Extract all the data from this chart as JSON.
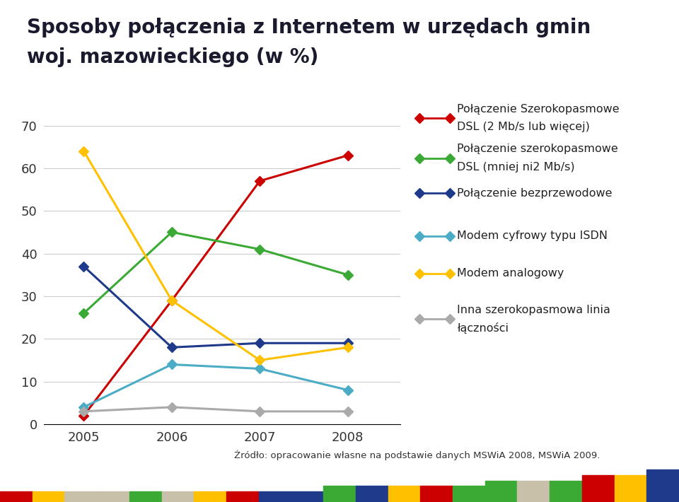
{
  "title_line1": "Sposoby połączenia z Internetem w urzędach gmin",
  "title_line2": "woj. mazowieckiego (w %)",
  "years": [
    2005,
    2006,
    2007,
    2008
  ],
  "series": [
    {
      "label_line1": "Połączenie Szerokopasmowe",
      "label_line2": "DSL (2 Mb/s lub więcej)",
      "values": [
        2,
        29,
        57,
        63
      ],
      "color": "#cc0000",
      "marker": "D"
    },
    {
      "label_line1": "Połączenie szerokopasmowe",
      "label_line2": "DSL (mniej ni2 Mb/s)",
      "values": [
        26,
        45,
        41,
        35
      ],
      "color": "#3aaa35",
      "marker": "D"
    },
    {
      "label_line1": "Połączenie bezprzewodowe",
      "label_line2": "",
      "values": [
        37,
        18,
        19,
        19
      ],
      "color": "#1f3a8a",
      "marker": "D"
    },
    {
      "label_line1": "Modem cyfrowy typu ISDN",
      "label_line2": "",
      "values": [
        4,
        14,
        13,
        8
      ],
      "color": "#4bacc6",
      "marker": "D"
    },
    {
      "label_line1": "Modem analogowy",
      "label_line2": "",
      "values": [
        64,
        29,
        15,
        18
      ],
      "color": "#ffc000",
      "marker": "D"
    },
    {
      "label_line1": "Inna szerokopasmowa linia",
      "label_line2": "łączności",
      "values": [
        3,
        4,
        3,
        3
      ],
      "color": "#aaaaaa",
      "marker": "D"
    }
  ],
  "ylim": [
    0,
    70
  ],
  "yticks": [
    0,
    10,
    20,
    30,
    40,
    50,
    60,
    70
  ],
  "footer_source": "Źródło: opracowanie własne na podstawie danych MSWiA 2008, MSWiA 2009.",
  "background_color": "#ffffff",
  "stripe_colors": [
    "#cc0000",
    "#ffc000",
    "#c8c0a8",
    "#c8c0a8",
    "#3aaa35",
    "#c8c0a8",
    "#ffc000",
    "#cc0000",
    "#1f3a8a",
    "#1f3a8a",
    "#3aaa35",
    "#1f3a8a",
    "#ffc000",
    "#cc0000",
    "#3aaa35",
    "#3aaa35",
    "#c8c0a8",
    "#3aaa35",
    "#cc0000",
    "#ffc000",
    "#1f3a8a"
  ],
  "stripe_heights": [
    1.0,
    1.0,
    1.0,
    1.0,
    1.0,
    1.0,
    1.0,
    1.0,
    1.0,
    1.0,
    1.5,
    1.5,
    1.5,
    1.5,
    1.5,
    2.0,
    2.0,
    2.0,
    2.5,
    2.5,
    3.0
  ]
}
